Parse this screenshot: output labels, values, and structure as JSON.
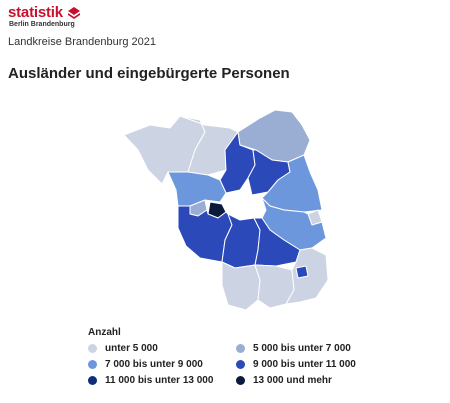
{
  "header": {
    "logo_text": "statistik",
    "logo_subtext": "Berlin Brandenburg",
    "subtitle": "Landkreise Brandenburg 2021",
    "title": "Ausländer und eingebürgerte Personen"
  },
  "legend": {
    "title": "Anzahl",
    "items": [
      {
        "label": "unter 5 000",
        "color": "#ccd3e3"
      },
      {
        "label": "5 000 bis unter 7 000",
        "color": "#9aaed3"
      },
      {
        "label": "7 000 bis unter 9 000",
        "color": "#6d97dc"
      },
      {
        "label": "9 000 bis unter 11 000",
        "color": "#2b49b9"
      },
      {
        "label": "11 000 bis unter 13 000",
        "color": "#122c7c"
      },
      {
        "label": "13 000 und mehr",
        "color": "#0b1a3d"
      }
    ]
  },
  "colors": {
    "brand": "#c8102e",
    "berlin": "#ffffff",
    "border": "#ffffff"
  }
}
